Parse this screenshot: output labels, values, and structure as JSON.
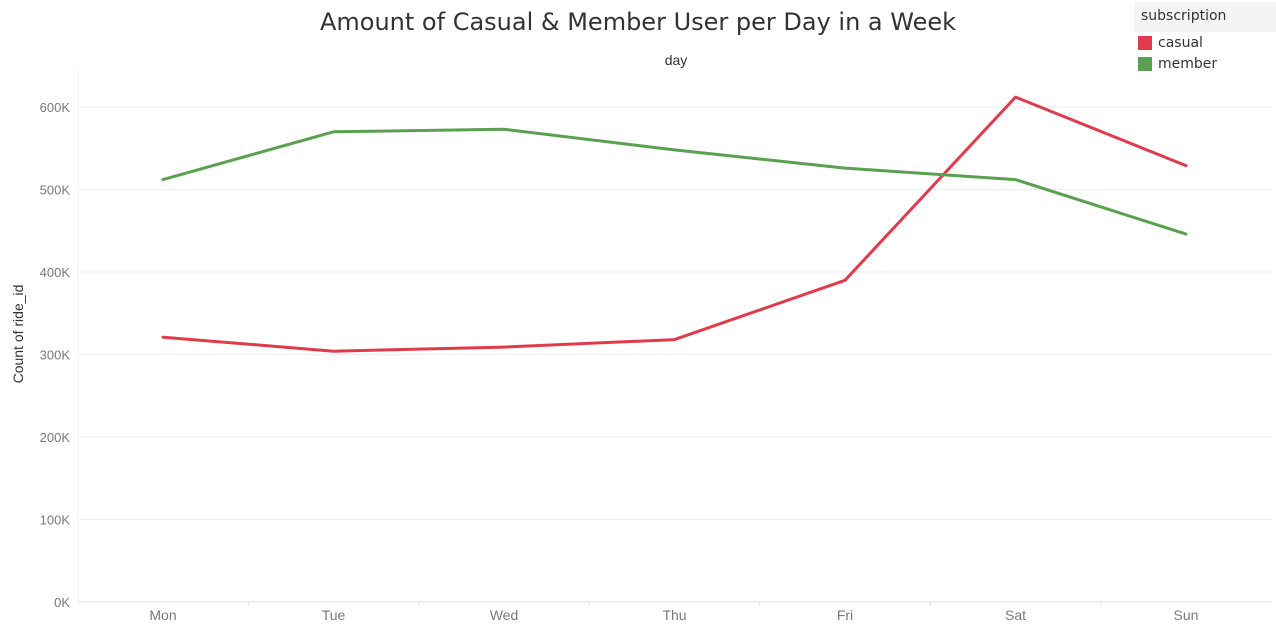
{
  "chart_data": {
    "type": "line",
    "title": "Amount of Casual & Member User per Day in a Week",
    "xlabel": "day",
    "ylabel": "Count of ride_id",
    "categories": [
      "Mon",
      "Tue",
      "Wed",
      "Thu",
      "Fri",
      "Sat",
      "Sun"
    ],
    "ylim": [
      0,
      650000
    ],
    "yticks": [
      0,
      100000,
      200000,
      300000,
      400000,
      500000,
      600000
    ],
    "ytick_labels": [
      "0K",
      "100K",
      "200K",
      "300K",
      "400K",
      "500K",
      "600K"
    ],
    "grid": true,
    "legend_title": "subscription",
    "legend_position": "top-right",
    "series": [
      {
        "name": "casual",
        "color": "#e03a4b",
        "values": [
          321000,
          304000,
          309000,
          318000,
          390000,
          612000,
          529000
        ]
      },
      {
        "name": "member",
        "color": "#59a14f",
        "values": [
          512000,
          570000,
          573000,
          548000,
          526000,
          512000,
          446000
        ]
      }
    ]
  }
}
